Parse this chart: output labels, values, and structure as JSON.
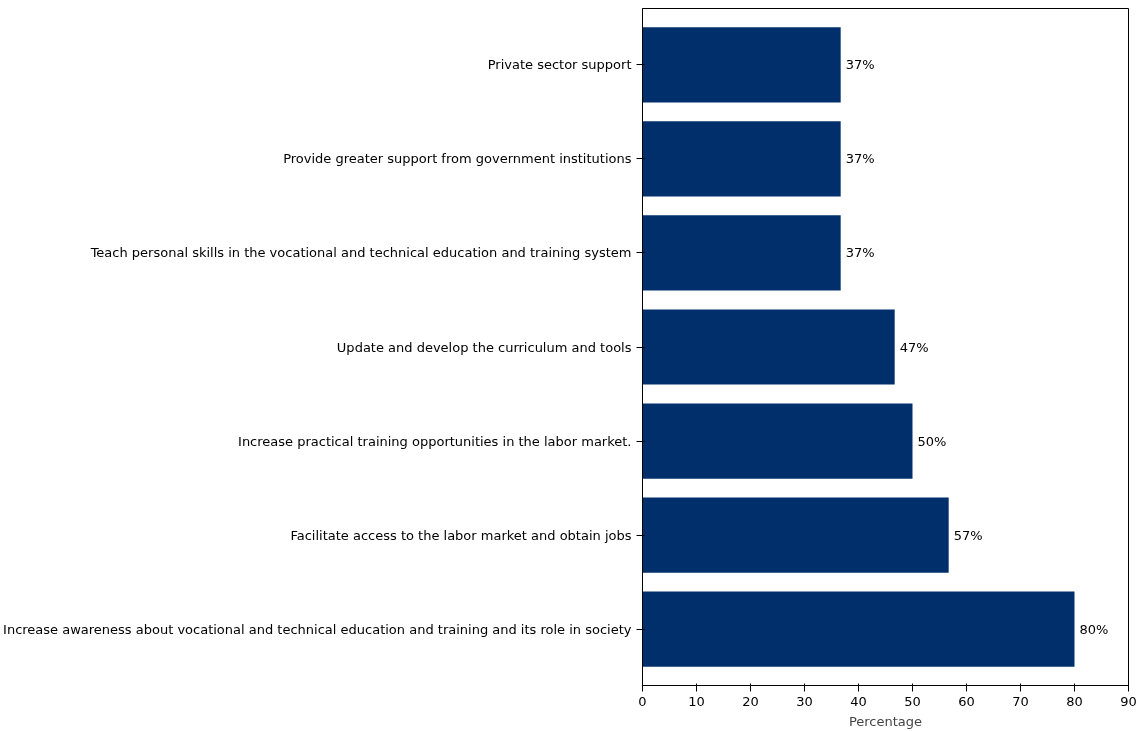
{
  "chart_data": {
    "type": "bar",
    "orientation": "horizontal",
    "xlabel": "Percentage",
    "categories": [
      "Private sector support",
      "Provide greater support from government institutions",
      "Teach personal skills in the vocational and technical education and training system",
      "Update and develop the curriculum and tools",
      "Increase practical training opportunities in the labor market.",
      "Facilitate access to the labor market and obtain jobs",
      "Increase awareness about vocational and technical education and training and its role in society"
    ],
    "values": [
      36.7,
      36.7,
      36.7,
      46.7,
      50,
      56.7,
      80
    ],
    "value_labels": [
      "37%",
      "37%",
      "37%",
      "47%",
      "50%",
      "57%",
      "80%"
    ],
    "color": "#002f6c",
    "xlim": [
      0,
      90
    ],
    "xticks": [
      0,
      10,
      20,
      30,
      40,
      50,
      60,
      70,
      80,
      90
    ],
    "grid": false
  }
}
